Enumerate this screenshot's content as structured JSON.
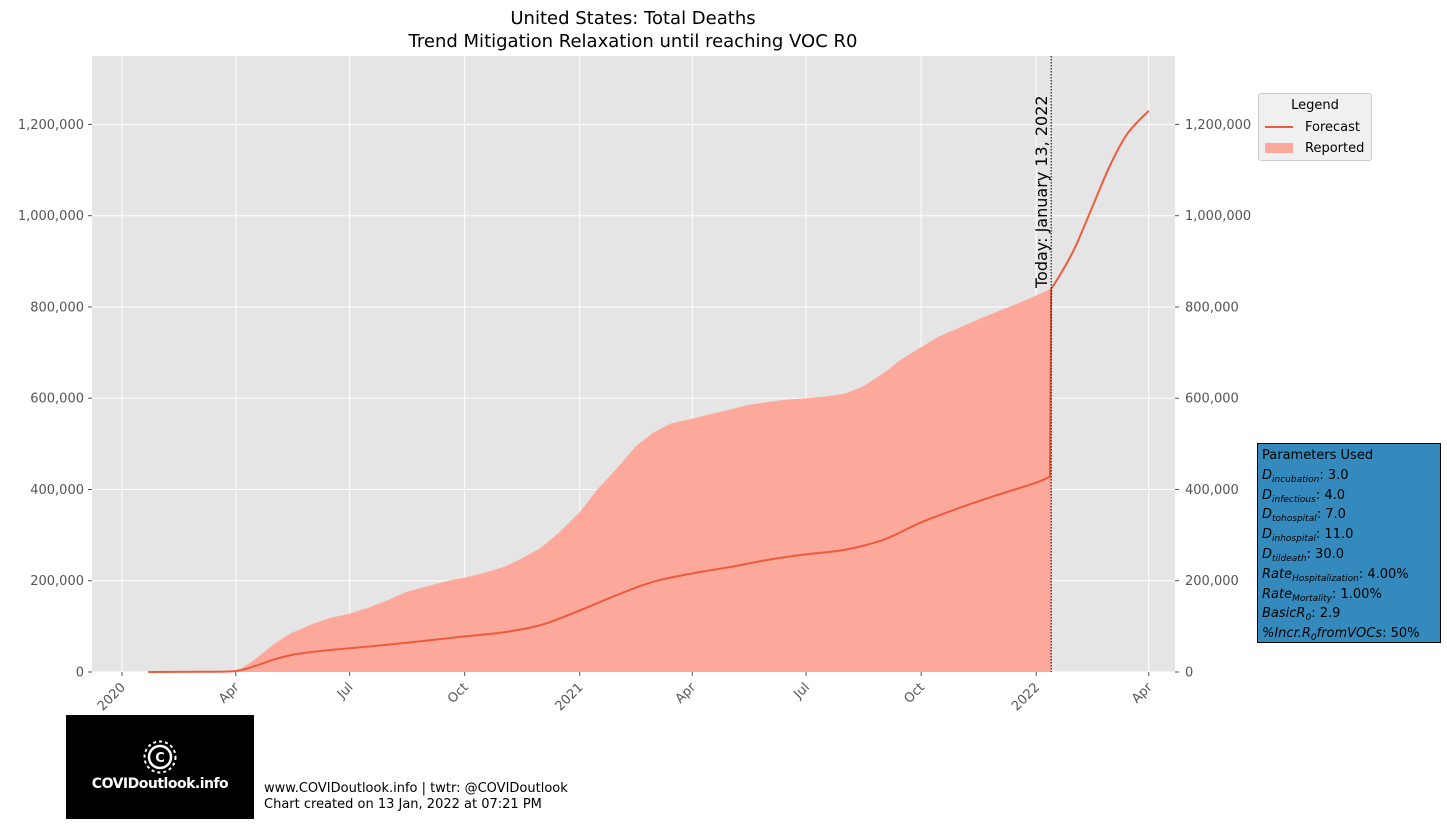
{
  "chart_data": {
    "type": "area",
    "title": "United States: Total Deaths",
    "subtitle": "Trend Mitigation Relaxation until reaching VOC R0",
    "xlabel": "",
    "ylabel": "",
    "ylim": [
      0,
      1350000
    ],
    "y_ticks": [
      0,
      200000,
      400000,
      600000,
      800000,
      1000000,
      1200000
    ],
    "y_tick_labels": [
      "0",
      "200,000",
      "400,000",
      "600,000",
      "800,000",
      "1,000,000",
      "1,200,000"
    ],
    "x_ticks": [
      {
        "label": "2020",
        "date": "2020-01-01"
      },
      {
        "label": "Apr",
        "date": "2020-04-01"
      },
      {
        "label": "Jul",
        "date": "2020-07-01"
      },
      {
        "label": "Oct",
        "date": "2020-10-01"
      },
      {
        "label": "2021",
        "date": "2021-01-01"
      },
      {
        "label": "Apr",
        "date": "2021-04-01"
      },
      {
        "label": "Jul",
        "date": "2021-07-01"
      },
      {
        "label": "Oct",
        "date": "2021-10-01"
      },
      {
        "label": "2022",
        "date": "2022-01-01"
      },
      {
        "label": "Apr",
        "date": "2022-04-01"
      }
    ],
    "grid": true,
    "legend_position": "right",
    "legend": {
      "title": "Legend",
      "entries": [
        {
          "name": "Forecast",
          "kind": "line",
          "color": "#f05a3c"
        },
        {
          "name": "Reported",
          "kind": "area",
          "color": "#fca99b"
        }
      ]
    },
    "today_marker": {
      "date": "2022-01-13",
      "label": "Today: January 13, 2022"
    },
    "series": [
      {
        "name": "Reported",
        "type": "area",
        "color": "#fca99b",
        "points": [
          [
            "2020-04-01",
            0
          ],
          [
            "2020-04-15",
            25000
          ],
          [
            "2020-05-01",
            60000
          ],
          [
            "2020-05-15",
            85000
          ],
          [
            "2020-06-01",
            105000
          ],
          [
            "2020-06-15",
            118000
          ],
          [
            "2020-07-01",
            128000
          ],
          [
            "2020-07-15",
            140000
          ],
          [
            "2020-08-01",
            158000
          ],
          [
            "2020-08-15",
            175000
          ],
          [
            "2020-09-01",
            188000
          ],
          [
            "2020-09-15",
            198000
          ],
          [
            "2020-10-01",
            207000
          ],
          [
            "2020-10-15",
            216000
          ],
          [
            "2020-11-01",
            230000
          ],
          [
            "2020-11-15",
            248000
          ],
          [
            "2020-12-01",
            272000
          ],
          [
            "2020-12-15",
            305000
          ],
          [
            "2021-01-01",
            350000
          ],
          [
            "2021-01-15",
            400000
          ],
          [
            "2021-02-01",
            450000
          ],
          [
            "2021-02-15",
            495000
          ],
          [
            "2021-03-01",
            525000
          ],
          [
            "2021-03-15",
            545000
          ],
          [
            "2021-04-01",
            555000
          ],
          [
            "2021-04-15",
            565000
          ],
          [
            "2021-05-01",
            575000
          ],
          [
            "2021-05-15",
            585000
          ],
          [
            "2021-06-01",
            592000
          ],
          [
            "2021-06-15",
            597000
          ],
          [
            "2021-07-01",
            600000
          ],
          [
            "2021-07-15",
            603000
          ],
          [
            "2021-08-01",
            610000
          ],
          [
            "2021-08-15",
            625000
          ],
          [
            "2021-09-01",
            655000
          ],
          [
            "2021-09-15",
            685000
          ],
          [
            "2021-10-01",
            712000
          ],
          [
            "2021-10-15",
            735000
          ],
          [
            "2021-11-01",
            755000
          ],
          [
            "2021-11-15",
            772000
          ],
          [
            "2021-12-01",
            790000
          ],
          [
            "2021-12-15",
            805000
          ],
          [
            "2022-01-01",
            825000
          ],
          [
            "2022-01-13",
            840000
          ]
        ]
      },
      {
        "name": "Forecast",
        "type": "line",
        "color": "#f05a3c",
        "points": [
          [
            "2020-01-22",
            0
          ],
          [
            "2020-03-01",
            500
          ],
          [
            "2020-03-31",
            2000
          ],
          [
            "2020-04-15",
            12000
          ],
          [
            "2020-05-01",
            27000
          ],
          [
            "2020-05-15",
            37000
          ],
          [
            "2020-06-01",
            44000
          ],
          [
            "2020-06-15",
            48000
          ],
          [
            "2020-07-01",
            52000
          ],
          [
            "2020-08-01",
            60000
          ],
          [
            "2020-09-01",
            69000
          ],
          [
            "2020-10-01",
            78000
          ],
          [
            "2020-11-01",
            87000
          ],
          [
            "2020-12-01",
            103000
          ],
          [
            "2021-01-01",
            135000
          ],
          [
            "2021-02-01",
            170000
          ],
          [
            "2021-03-01",
            198000
          ],
          [
            "2021-04-01",
            216000
          ],
          [
            "2021-05-01",
            230000
          ],
          [
            "2021-06-01",
            246000
          ],
          [
            "2021-07-01",
            258000
          ],
          [
            "2021-08-01",
            268000
          ],
          [
            "2021-09-01",
            290000
          ],
          [
            "2021-10-01",
            328000
          ],
          [
            "2021-11-01",
            360000
          ],
          [
            "2021-12-01",
            388000
          ],
          [
            "2022-01-01",
            415000
          ],
          [
            "2022-01-12",
            428000
          ],
          [
            "2022-01-13",
            840000
          ],
          [
            "2022-01-20",
            870000
          ],
          [
            "2022-02-01",
            930000
          ],
          [
            "2022-02-15",
            1020000
          ],
          [
            "2022-03-01",
            1110000
          ],
          [
            "2022-03-15",
            1180000
          ],
          [
            "2022-04-01",
            1230000
          ]
        ]
      }
    ]
  },
  "parameters": {
    "title": "Parameters Used",
    "rows": [
      {
        "base": "D",
        "sub": "incubation",
        "value": ": 3.0"
      },
      {
        "base": "D",
        "sub": "infectious",
        "value": ": 4.0"
      },
      {
        "base": "D",
        "sub": "tohospital",
        "value": ": 7.0"
      },
      {
        "base": "D",
        "sub": "inhospital",
        "value": ": 11.0"
      },
      {
        "base": "D",
        "sub": "tildeath",
        "value": ": 30.0"
      },
      {
        "base": "Rate",
        "sub": "Hospitalization",
        "value": ": 4.00%"
      },
      {
        "base": "Rate",
        "sub": "Mortality",
        "value": ": 1.00%"
      },
      {
        "base": "BasicR",
        "sub": "0",
        "value": ": 2.9"
      },
      {
        "base": "%Incr.R",
        "sub": "0",
        "base2": "fromVOCs",
        "value": ": 50%"
      }
    ]
  },
  "branding": {
    "logo_text": "COVIDoutlook.info",
    "footer_line1": "www.COVIDoutlook.info | twtr: @COVIDoutlook",
    "footer_line2": "Chart created on 13 Jan, 2022 at 07:21 PM"
  },
  "colors": {
    "plot_bg": "#e5e5e5",
    "grid": "#ffffff",
    "forecast": "#f05a3c",
    "reported": "#fca99b",
    "params_bg": "#348abd"
  }
}
